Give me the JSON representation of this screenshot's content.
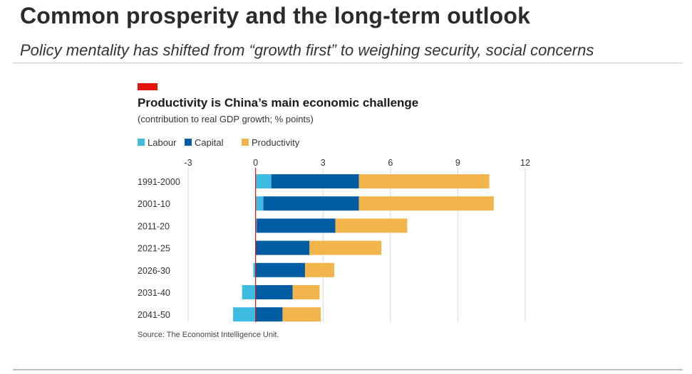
{
  "slide": {
    "title": "Common prosperity and the long-term outlook",
    "subtitle": "Policy mentality has shifted from “growth first” to weighing security, social concerns"
  },
  "colors": {
    "accent": "#e3120b",
    "labour": "#3ebbe0",
    "capital": "#005da4",
    "productivity": "#f2b54c",
    "zero_line": "#e3120b",
    "grid": "#d9d9d9"
  },
  "chart_data": {
    "type": "bar",
    "orientation": "horizontal",
    "stacked": true,
    "title": "Productivity is China’s main economic challenge",
    "subtitle": "(contribution to real GDP growth; % points)",
    "source": "Source: The Economist Intelligence Unit.",
    "categories": [
      "1991-2000",
      "2001-10",
      "2011-20",
      "2021-25",
      "2026-30",
      "2031-40",
      "2041-50"
    ],
    "series": [
      {
        "name": "Labour",
        "color": "#3ebbe0",
        "values": [
          0.7,
          0.35,
          0.05,
          0.0,
          -0.1,
          -0.6,
          -1.0
        ]
      },
      {
        "name": "Capital",
        "color": "#005da4",
        "values": [
          3.9,
          4.25,
          3.5,
          2.4,
          2.2,
          1.65,
          1.2
        ]
      },
      {
        "name": "Productivity",
        "color": "#f2b54c",
        "values": [
          5.8,
          6.0,
          3.2,
          3.2,
          1.3,
          1.2,
          1.7
        ]
      }
    ],
    "xlim": [
      -3,
      12
    ],
    "xticks": [
      -3,
      0,
      3,
      6,
      9,
      12
    ],
    "xtick_labels": [
      "-3",
      "0",
      "3",
      "6",
      "9",
      "12"
    ],
    "xaxis_position": "top",
    "grid": true,
    "legend_position": "top-left"
  }
}
